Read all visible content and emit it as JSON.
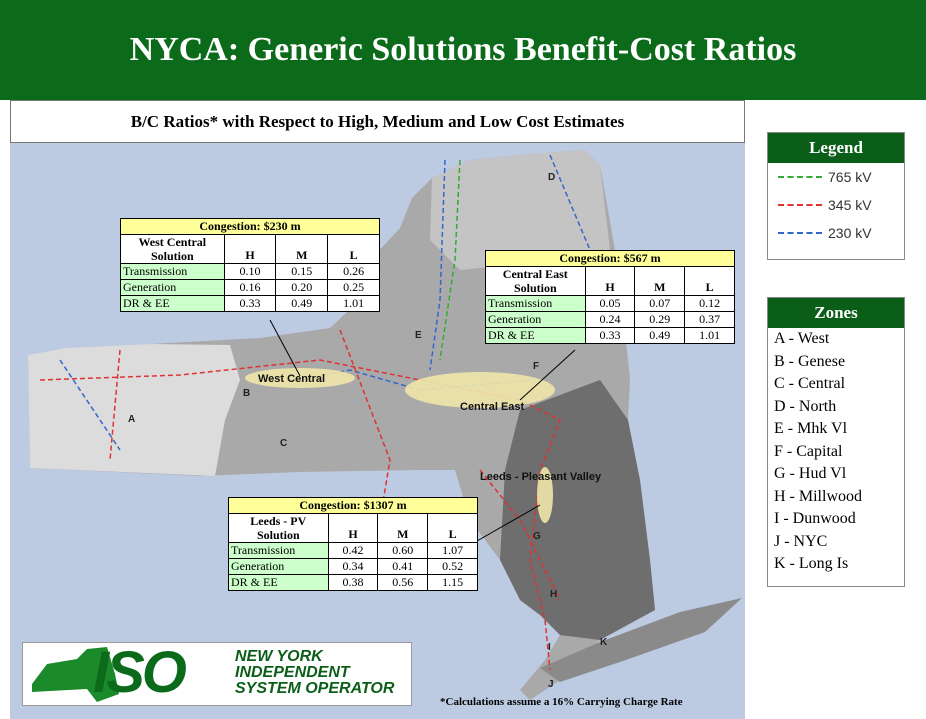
{
  "header": {
    "title": "NYCA: Generic Solutions Benefit-Cost Ratios"
  },
  "subtitle": "B/C Ratios* with Respect to High, Medium and Low Cost Estimates",
  "legend": {
    "title": "Legend",
    "items": [
      "765 kV",
      "345 kV",
      "230 kV"
    ],
    "colors": [
      "#33aa33",
      "#dd3333",
      "#3366cc"
    ]
  },
  "zones": {
    "title": "Zones",
    "items": [
      "A - West",
      "B - Genese",
      "C - Central",
      "D - North",
      "E - Mhk Vl",
      "F - Capital",
      "G - Hud Vl",
      "H - Millwood",
      "I - Dunwood",
      "J - NYC",
      "K - Long Is"
    ]
  },
  "map": {
    "zone_letters": [
      "A",
      "B",
      "C",
      "D",
      "E",
      "F",
      "G",
      "H",
      "I",
      "J",
      "K"
    ],
    "areas": [
      "West Central",
      "Central East",
      "Leeds - Pleasant Valley"
    ]
  },
  "tables": [
    {
      "title": "Congestion: $230 m",
      "solution": "West Central Solution",
      "headers": [
        "H",
        "M",
        "L"
      ],
      "rows": [
        {
          "label": "Transmission",
          "values": [
            "0.10",
            "0.15",
            "0.26"
          ]
        },
        {
          "label": "Generation",
          "values": [
            "0.16",
            "0.20",
            "0.25"
          ]
        },
        {
          "label": "DR & EE",
          "values": [
            "0.33",
            "0.49",
            "1.01"
          ]
        }
      ]
    },
    {
      "title": "Congestion: $567 m",
      "solution": "Central East Solution",
      "headers": [
        "H",
        "M",
        "L"
      ],
      "rows": [
        {
          "label": "Transmission",
          "values": [
            "0.05",
            "0.07",
            "0.12"
          ]
        },
        {
          "label": "Generation",
          "values": [
            "0.24",
            "0.29",
            "0.37"
          ]
        },
        {
          "label": "DR & EE",
          "values": [
            "0.33",
            "0.49",
            "1.01"
          ]
        }
      ]
    },
    {
      "title": "Congestion: $1307 m",
      "solution": "Leeds - PV Solution",
      "headers": [
        "H",
        "M",
        "L"
      ],
      "rows": [
        {
          "label": "Transmission",
          "values": [
            "0.42",
            "0.60",
            "1.07"
          ]
        },
        {
          "label": "Generation",
          "values": [
            "0.34",
            "0.41",
            "0.52"
          ]
        },
        {
          "label": "DR & EE",
          "values": [
            "0.38",
            "0.56",
            "1.15"
          ]
        }
      ]
    }
  ],
  "logo": {
    "mark": "ISO",
    "lines": [
      "NEW YORK",
      "INDEPENDENT",
      "SYSTEM OPERATOR"
    ]
  },
  "footnote": "*Calculations assume a 16% Carrying Charge Rate"
}
